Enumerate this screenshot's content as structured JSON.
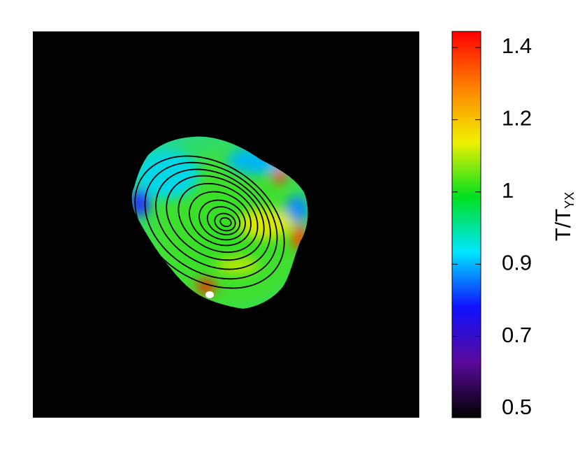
{
  "chart_data": {
    "type": "image-map",
    "colorbar": {
      "ticks": [
        0.5,
        0.7,
        0.9,
        1.0,
        1.2,
        1.4
      ],
      "colormap": [
        "#000000",
        "#5a0a9a",
        "#1010ff",
        "#00e6ff",
        "#00e020",
        "#f0f000",
        "#ff8000",
        "#ff0000"
      ],
      "label": "T/T",
      "label_subscript": "YX"
    }
  }
}
